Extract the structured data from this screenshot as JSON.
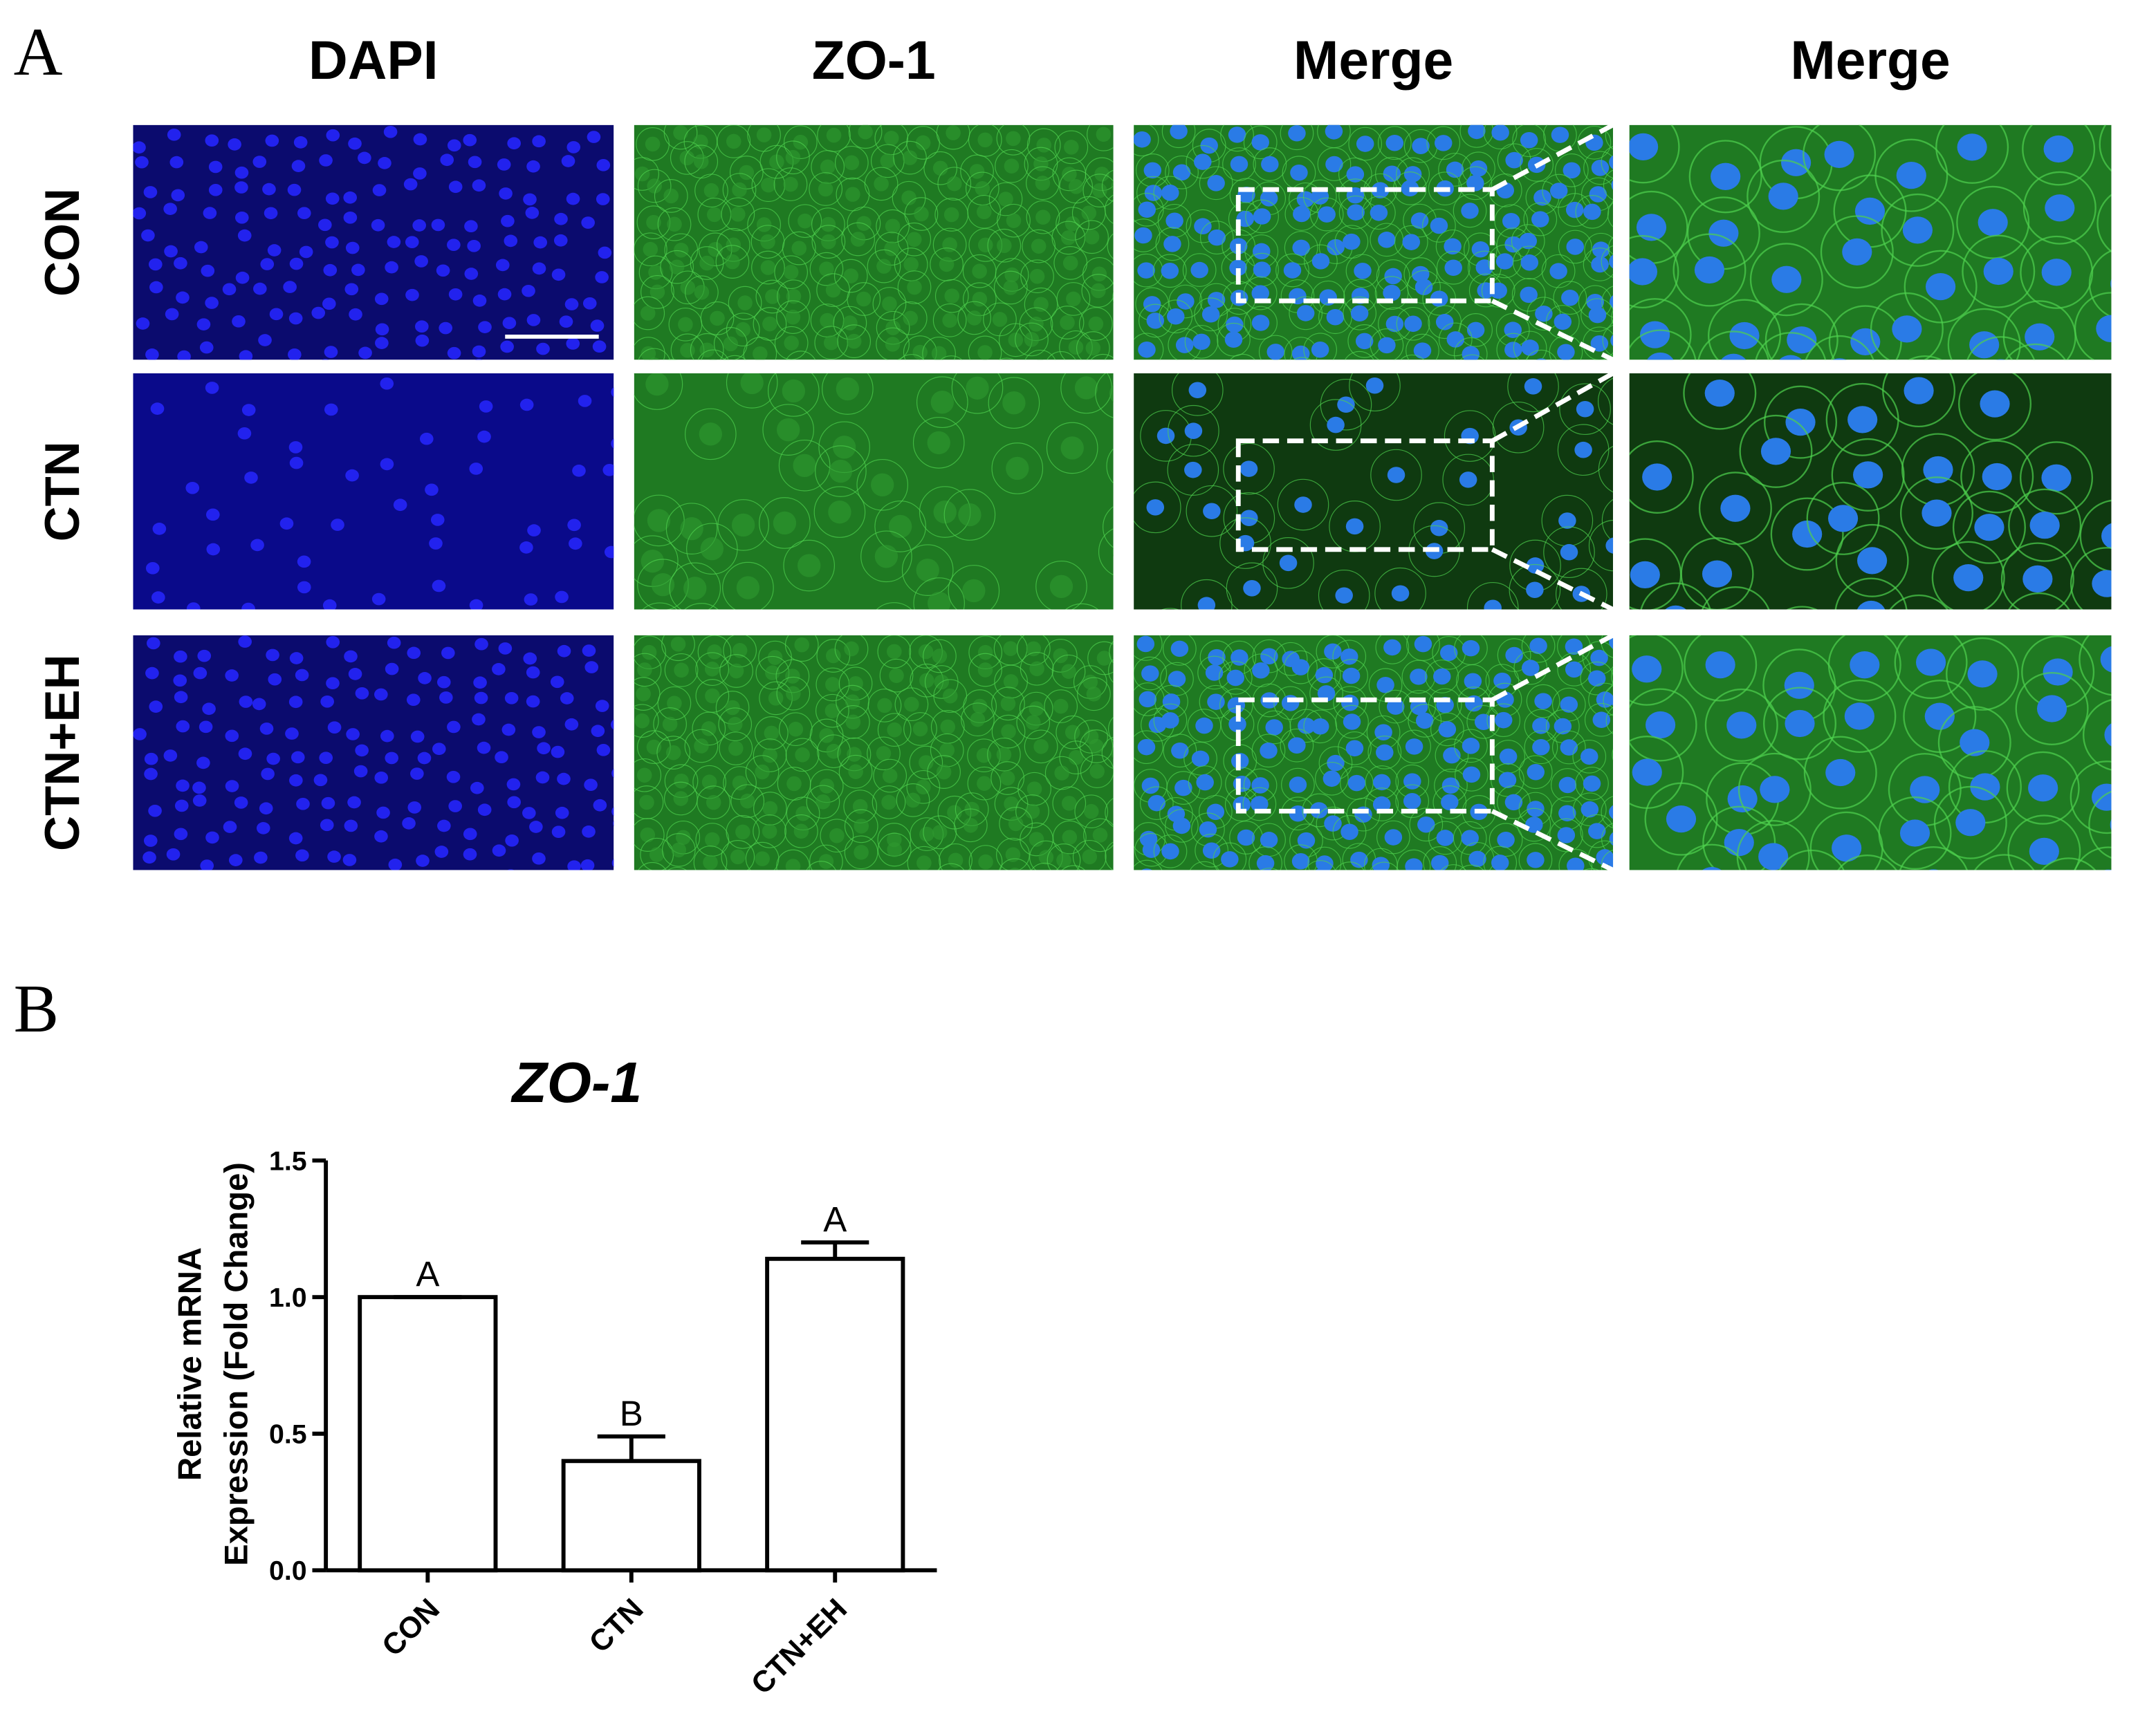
{
  "figure": {
    "panel_a_label": "A",
    "panel_b_label": "B",
    "column_headers": [
      "DAPI",
      "ZO-1",
      "Merge",
      "Merge"
    ],
    "row_labels": [
      "CON",
      "CTN",
      "CTN+EH"
    ]
  },
  "chart_data": {
    "type": "bar",
    "title": "ZO-1",
    "ylabel": [
      "Relative mRNA",
      "Expression (Fold Change)"
    ],
    "categories": [
      "CON",
      "CTN",
      "CTN+EH"
    ],
    "values": [
      1.0,
      0.4,
      1.14
    ],
    "errors": [
      0,
      0.09,
      0.06
    ],
    "annotations": [
      "A",
      "B",
      "A"
    ],
    "color": "#ffffff",
    "ylim": [
      0,
      1.5
    ],
    "yticks": [
      {
        "value": 0,
        "label": "0.0"
      },
      {
        "value": 0.5,
        "label": "0.5"
      },
      {
        "value": 1,
        "label": "1.0"
      },
      {
        "value": 1.5,
        "label": "1.5"
      }
    ]
  }
}
